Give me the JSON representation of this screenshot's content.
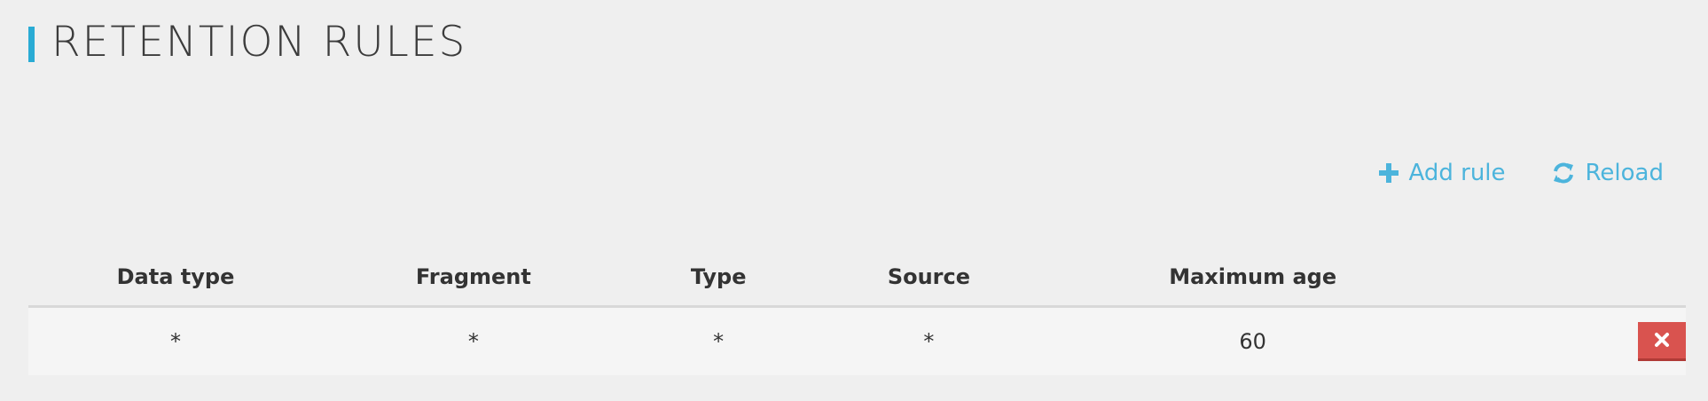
{
  "page": {
    "title": "RETENTION RULES"
  },
  "toolbar": {
    "add_label": "Add rule",
    "reload_label": "Reload",
    "accent_color": "#4cb4dc"
  },
  "table": {
    "columns": [
      "Data type",
      "Fragment",
      "Type",
      "Source",
      "Maximum age"
    ],
    "rows": [
      {
        "data_type": "*",
        "fragment": "*",
        "type": "*",
        "source": "*",
        "maximum_age": "60"
      }
    ]
  },
  "colors": {
    "title_accent": "#29abd4",
    "delete": "#d9534f"
  },
  "icons": {
    "add": "plus-icon",
    "reload": "refresh-icon",
    "delete": "close-icon"
  }
}
